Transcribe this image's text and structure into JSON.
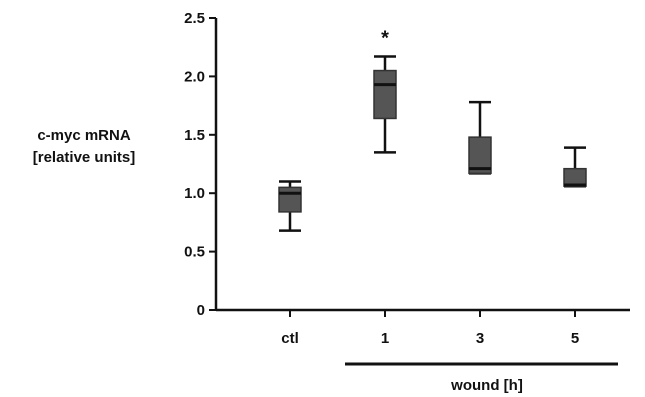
{
  "chart_data": {
    "type": "box",
    "title": "",
    "ylabel_line1": "c-myc mRNA",
    "ylabel_line2": "[relative units]",
    "xgroup_label": "wound [h]",
    "categories": [
      "ctl",
      "1",
      "3",
      "5"
    ],
    "ylim": [
      0,
      2.5
    ],
    "yticks": [
      "0",
      "0.5",
      "1.0",
      "1.5",
      "2.0",
      "2.5"
    ],
    "grid": false,
    "box_color": "#555555",
    "boxes": [
      {
        "category": "ctl",
        "min": 0.68,
        "q1": 0.84,
        "median": 1.0,
        "q3": 1.05,
        "max": 1.1
      },
      {
        "category": "1",
        "min": 1.35,
        "q1": 1.64,
        "median": 1.93,
        "q3": 2.05,
        "max": 2.17
      },
      {
        "category": "3",
        "min": 1.17,
        "q1": 1.17,
        "median": 1.21,
        "q3": 1.48,
        "max": 1.78
      },
      {
        "category": "5",
        "min": 1.06,
        "q1": 1.06,
        "median": 1.07,
        "q3": 1.21,
        "max": 1.39
      }
    ],
    "annotations": [
      {
        "category": "1",
        "text": "*"
      }
    ]
  }
}
